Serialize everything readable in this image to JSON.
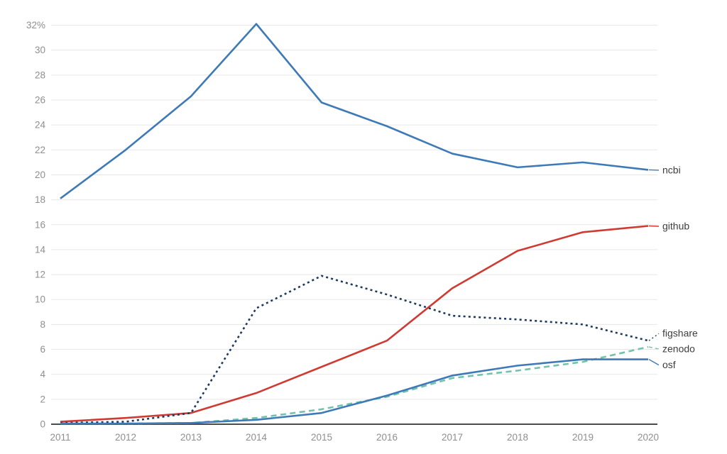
{
  "chart_data": {
    "type": "line",
    "title": "",
    "xlabel": "",
    "ylabel": "",
    "x": [
      2011,
      2012,
      2013,
      2014,
      2015,
      2016,
      2017,
      2018,
      2019,
      2020
    ],
    "x_tick_labels": [
      "2011",
      "2012",
      "2013",
      "2014",
      "2015",
      "2016",
      "2017",
      "2018",
      "2019",
      "2020"
    ],
    "y_ticks": [
      0,
      2,
      4,
      6,
      8,
      10,
      12,
      14,
      16,
      18,
      20,
      22,
      24,
      26,
      28,
      30,
      32
    ],
    "y_tick_labels": [
      "0",
      "2",
      "4",
      "6",
      "8",
      "10",
      "12",
      "14",
      "16",
      "18",
      "20",
      "22",
      "24",
      "26",
      "28",
      "30",
      "32%"
    ],
    "ylim": [
      0,
      33
    ],
    "grid": true,
    "legend_position": "right-end-labels",
    "series": [
      {
        "name": "ncbi",
        "color": "#3d7ab7",
        "style": "solid",
        "values": [
          18.1,
          22.0,
          26.3,
          32.1,
          25.8,
          23.9,
          21.7,
          20.6,
          21.0,
          20.4
        ]
      },
      {
        "name": "github",
        "color": "#cf3a33",
        "style": "solid",
        "values": [
          0.2,
          0.5,
          0.9,
          2.5,
          4.6,
          6.7,
          10.9,
          13.9,
          15.4,
          15.9
        ]
      },
      {
        "name": "figshare",
        "color": "#1e3a5f",
        "style": "dotted",
        "values": [
          0.1,
          0.2,
          0.9,
          9.3,
          11.9,
          10.4,
          8.7,
          8.4,
          8.0,
          6.7
        ]
      },
      {
        "name": "zenodo",
        "color": "#72c3ae",
        "style": "dashed",
        "values": [
          0.05,
          0.05,
          0.1,
          0.5,
          1.2,
          2.2,
          3.7,
          4.3,
          5.0,
          6.2
        ]
      },
      {
        "name": "osf",
        "color": "#3d7ab7",
        "style": "solid",
        "values": [
          0.05,
          0.05,
          0.1,
          0.35,
          0.9,
          2.3,
          3.9,
          4.7,
          5.2,
          5.2
        ]
      }
    ],
    "colors": {
      "gridline": "#e7e7e7",
      "axis_line": "#4c4c4c",
      "tick_label": "#8f8f8f",
      "series_label": "#3d3d3d"
    }
  }
}
